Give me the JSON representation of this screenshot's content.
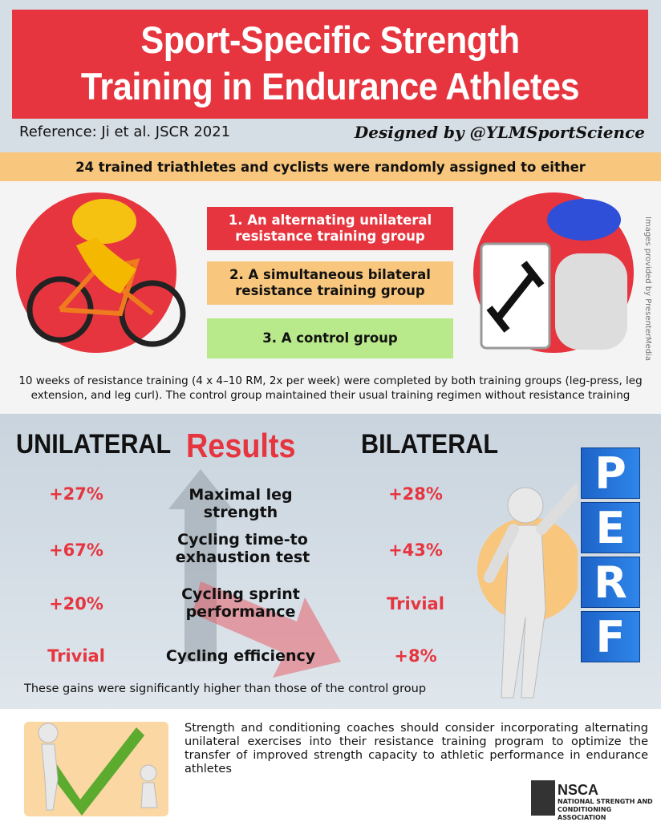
{
  "header": {
    "title_line1": "Sport-Specific Strength",
    "title_line2": "Training in Endurance Athletes",
    "reference": "Reference: Ji et al. JSCR 2021",
    "designer": "Designed by @YLMSportScience"
  },
  "intro": "24 trained triathletes and cyclists were randomly assigned to either",
  "groups": [
    "1. An alternating unilateral resistance training group",
    "2. A simultaneous bilateral resistance training group",
    "3. A control group"
  ],
  "credit": "Images provided by PresenterMedia",
  "methods": "10 weeks of resistance training (4 x 4–10 RM, 2x per week) were completed by both training groups (leg-press, leg extension, and leg curl). The control group maintained their usual training regimen without resistance training",
  "results": {
    "left_heading": "UNILATERAL",
    "title": "Results",
    "right_heading": "BILATERAL",
    "rows": [
      {
        "unilateral": "+27%",
        "measure": "Maximal leg strength",
        "bilateral": "+28%"
      },
      {
        "unilateral": "+67%",
        "measure": "Cycling time-to exhaustion test",
        "bilateral": "+43%"
      },
      {
        "unilateral": "+20%",
        "measure": "Cycling sprint performance",
        "bilateral": "Trivial"
      },
      {
        "unilateral": "Trivial",
        "measure": "Cycling efficiency",
        "bilateral": "+8%"
      }
    ],
    "note": "These gains were significantly higher than those of the control group"
  },
  "perf_letters": [
    "P",
    "E",
    "R",
    "F"
  ],
  "conclusion": "Strength and conditioning coaches should consider incorporating alternating unilateral exercises into their resistance training program to optimize the transfer of improved strength capacity to athletic performance in endurance athletes",
  "logo": {
    "name": "NSCA",
    "full": "NATIONAL STRENGTH AND CONDITIONING ASSOCIATION"
  }
}
